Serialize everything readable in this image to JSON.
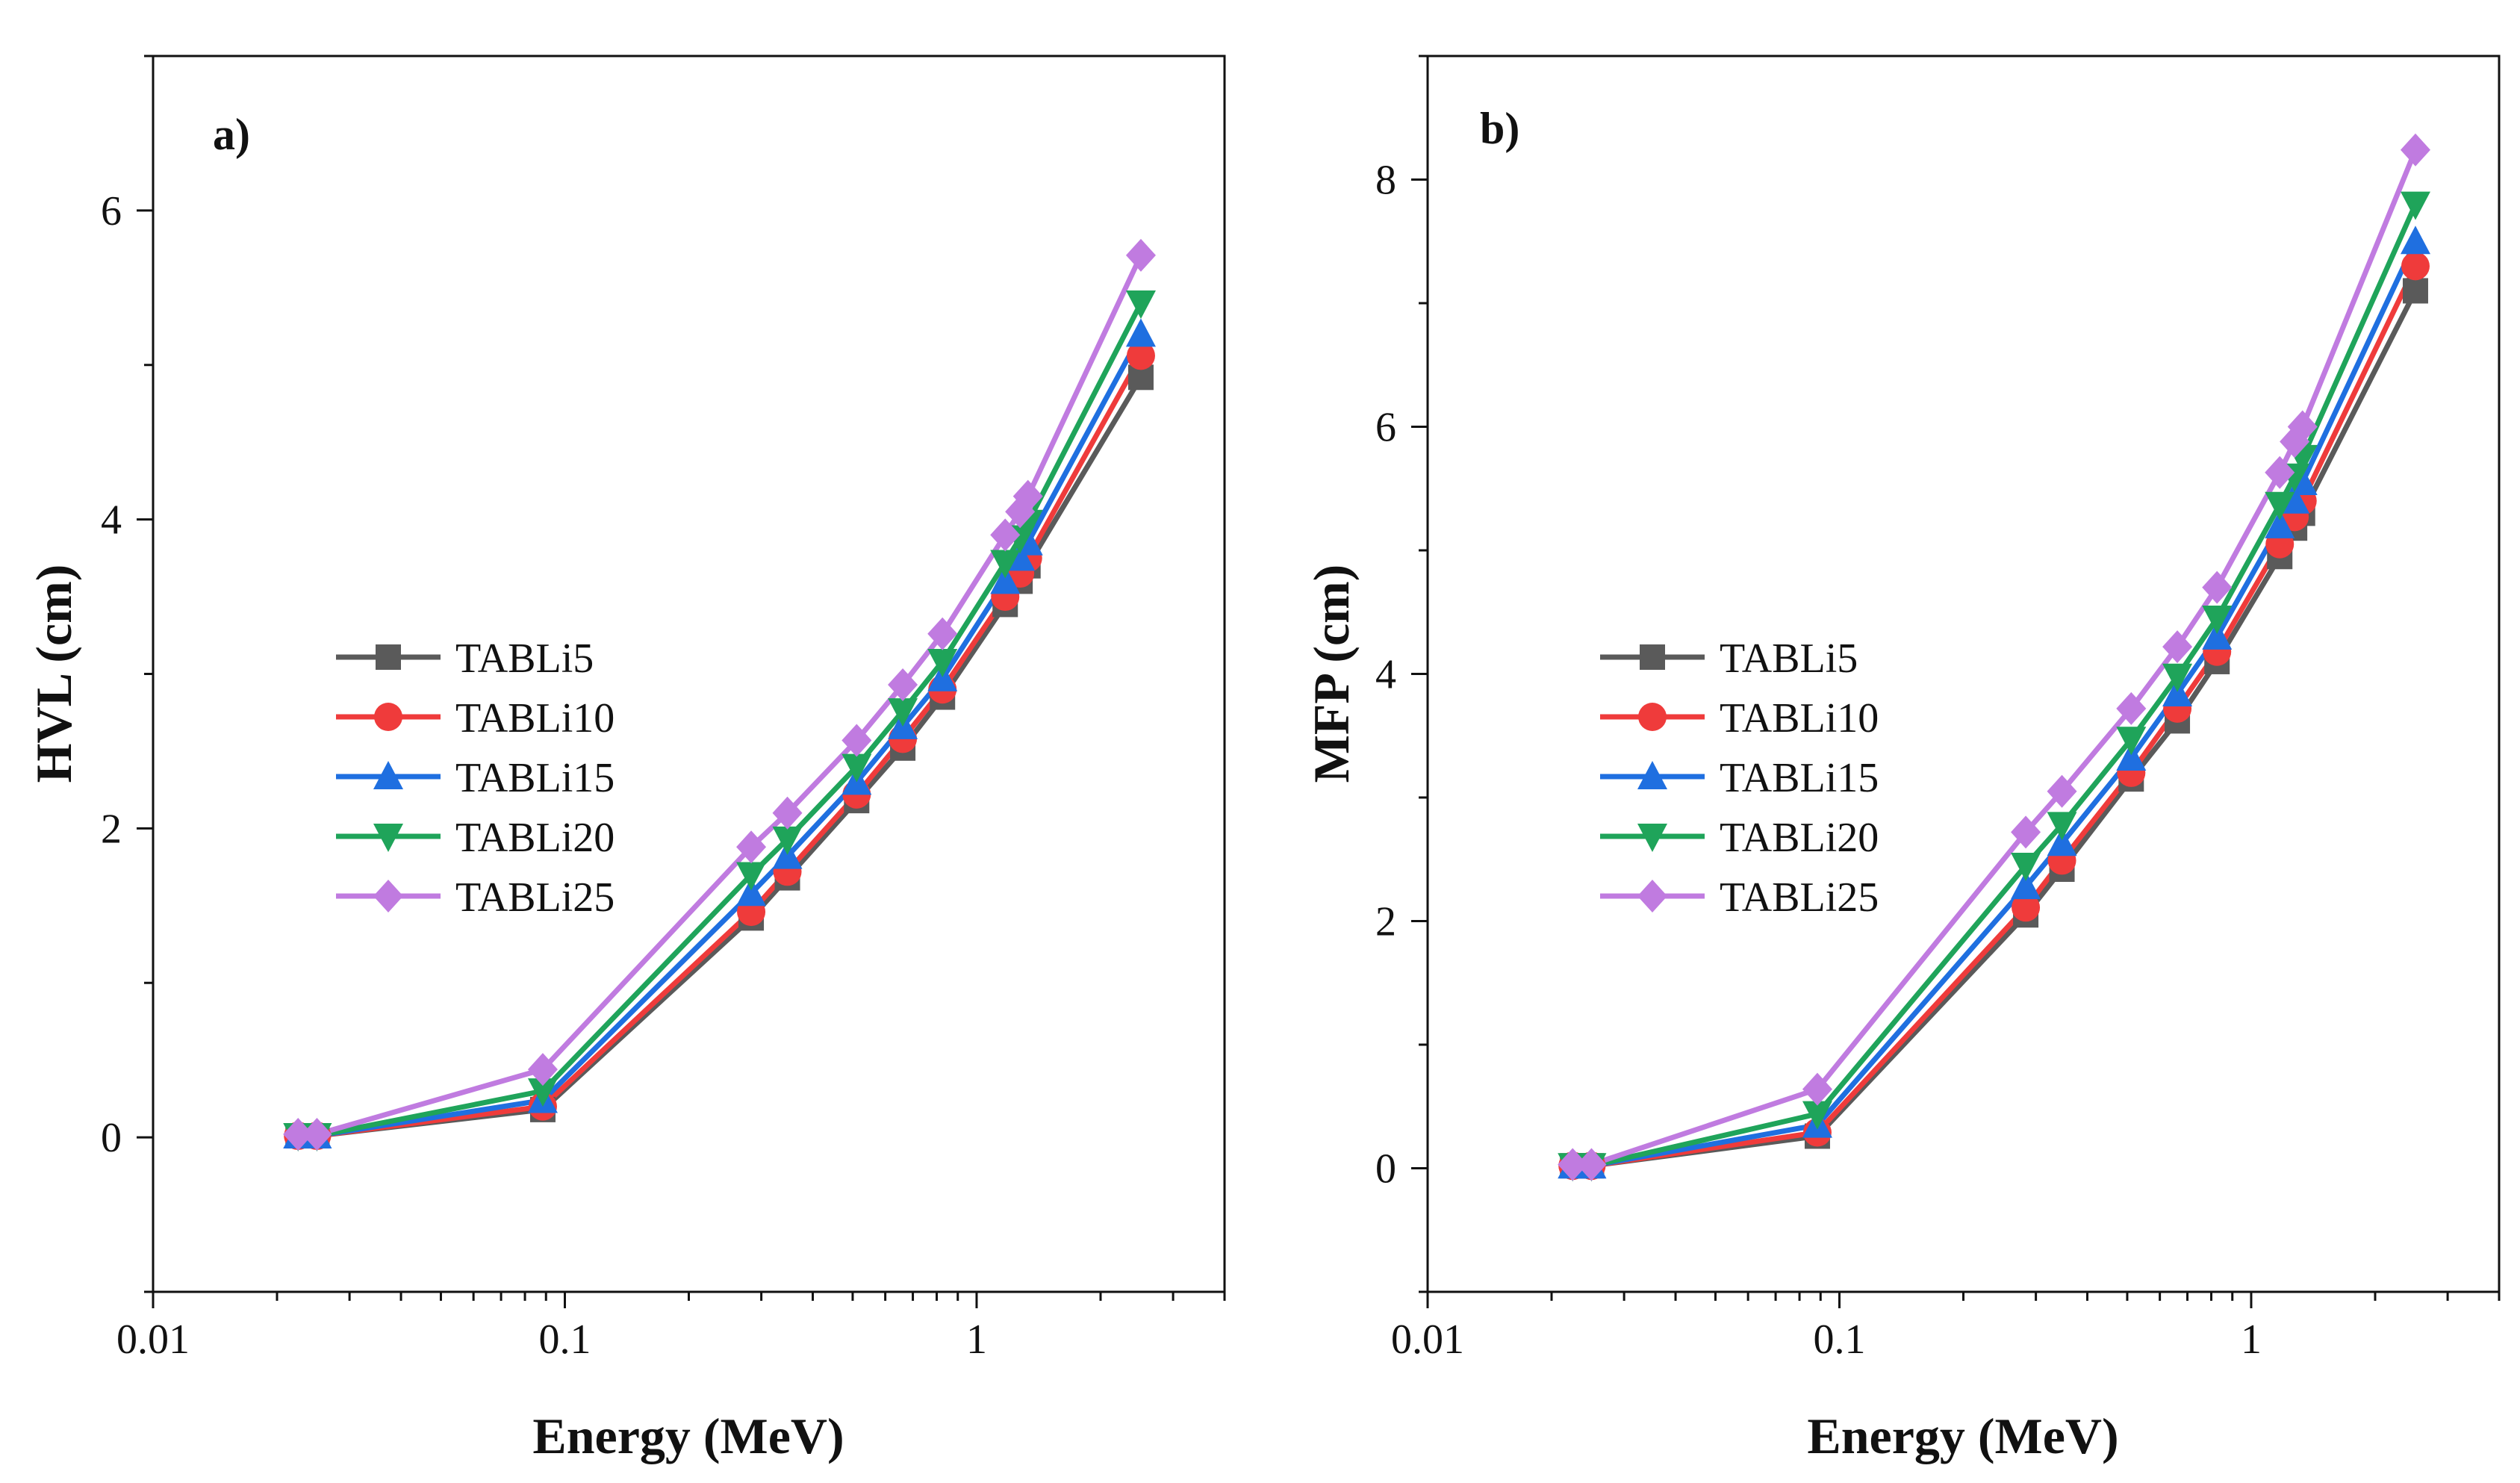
{
  "colors": {
    "TABLi5": "#5a5a5a",
    "TABLi10": "#ef3b3b",
    "TABLi15": "#1f6fe0",
    "TABLi20": "#1fa45a",
    "TABLi25": "#c07be0",
    "axis": "#111111"
  },
  "chart_data": [
    {
      "type": "line",
      "panel_label": "a)",
      "title": "",
      "xlabel": "Energy (MeV)",
      "ylabel": "HVL (cm)",
      "xscale": "log",
      "xlim": [
        0.01,
        4
      ],
      "ylim": [
        -1,
        7
      ],
      "xticks": [
        0.01,
        0.1,
        1
      ],
      "xtick_labels": [
        "0.01",
        "0.1",
        "1"
      ],
      "yticks": [
        0,
        2,
        4,
        6
      ],
      "ytick_labels": [
        "0",
        "2",
        "4",
        "6"
      ],
      "grid": false,
      "legend_position": "center-left",
      "x": [
        0.0225,
        0.025,
        0.0884,
        0.2835,
        0.3471,
        0.5113,
        0.6617,
        0.8261,
        1.1732,
        1.2748,
        1.3325,
        2.5057
      ],
      "series": [
        {
          "name": "TABLi5",
          "marker": "square",
          "values": [
            0.01,
            0.01,
            0.18,
            1.42,
            1.68,
            2.18,
            2.52,
            2.85,
            3.45,
            3.6,
            3.7,
            4.92
          ]
        },
        {
          "name": "TABLi10",
          "marker": "circle",
          "values": [
            0.01,
            0.01,
            0.2,
            1.46,
            1.72,
            2.22,
            2.58,
            2.9,
            3.5,
            3.65,
            3.75,
            5.06
          ]
        },
        {
          "name": "TABLi15",
          "marker": "triangle-up",
          "values": [
            0.01,
            0.01,
            0.24,
            1.58,
            1.82,
            2.3,
            2.66,
            2.97,
            3.6,
            3.75,
            3.85,
            5.2
          ]
        },
        {
          "name": "TABLi20",
          "marker": "triangle-down",
          "values": [
            0.01,
            0.01,
            0.3,
            1.7,
            1.93,
            2.4,
            2.76,
            3.08,
            3.72,
            3.88,
            3.98,
            5.4
          ]
        },
        {
          "name": "TABLi25",
          "marker": "diamond",
          "values": [
            0.02,
            0.02,
            0.44,
            1.88,
            2.1,
            2.57,
            2.93,
            3.26,
            3.9,
            4.05,
            4.15,
            5.71
          ]
        }
      ]
    },
    {
      "type": "line",
      "panel_label": "b)",
      "title": "",
      "xlabel": "Energy (MeV)",
      "ylabel": "MFP (cm)",
      "xscale": "log",
      "xlim": [
        0.01,
        4
      ],
      "ylim": [
        -1,
        9
      ],
      "xticks": [
        0.01,
        0.1,
        1
      ],
      "xtick_labels": [
        "0.01",
        "0.1",
        "1"
      ],
      "yticks": [
        0,
        2,
        4,
        6,
        8
      ],
      "ytick_labels": [
        "0",
        "2",
        "4",
        "6",
        "8"
      ],
      "grid": false,
      "legend_position": "center-left",
      "x": [
        0.0225,
        0.025,
        0.0884,
        0.2835,
        0.3471,
        0.5113,
        0.6617,
        0.8261,
        1.1732,
        1.2748,
        1.3325,
        2.5057
      ],
      "series": [
        {
          "name": "TABLi5",
          "marker": "square",
          "values": [
            0.02,
            0.02,
            0.26,
            2.05,
            2.42,
            3.15,
            3.62,
            4.1,
            4.95,
            5.18,
            5.3,
            7.1
          ]
        },
        {
          "name": "TABLi10",
          "marker": "circle",
          "values": [
            0.02,
            0.02,
            0.29,
            2.11,
            2.49,
            3.2,
            3.72,
            4.18,
            5.05,
            5.27,
            5.4,
            7.3
          ]
        },
        {
          "name": "TABLi15",
          "marker": "triangle-up",
          "values": [
            0.02,
            0.02,
            0.35,
            2.28,
            2.63,
            3.32,
            3.84,
            4.3,
            5.2,
            5.4,
            5.55,
            7.5
          ]
        },
        {
          "name": "TABLi20",
          "marker": "triangle-down",
          "values": [
            0.02,
            0.02,
            0.44,
            2.45,
            2.78,
            3.47,
            3.98,
            4.45,
            5.37,
            5.6,
            5.75,
            7.8
          ]
        },
        {
          "name": "TABLi25",
          "marker": "diamond",
          "values": [
            0.03,
            0.03,
            0.64,
            2.72,
            3.05,
            3.72,
            4.22,
            4.7,
            5.63,
            5.88,
            6.0,
            8.24
          ]
        }
      ]
    }
  ]
}
